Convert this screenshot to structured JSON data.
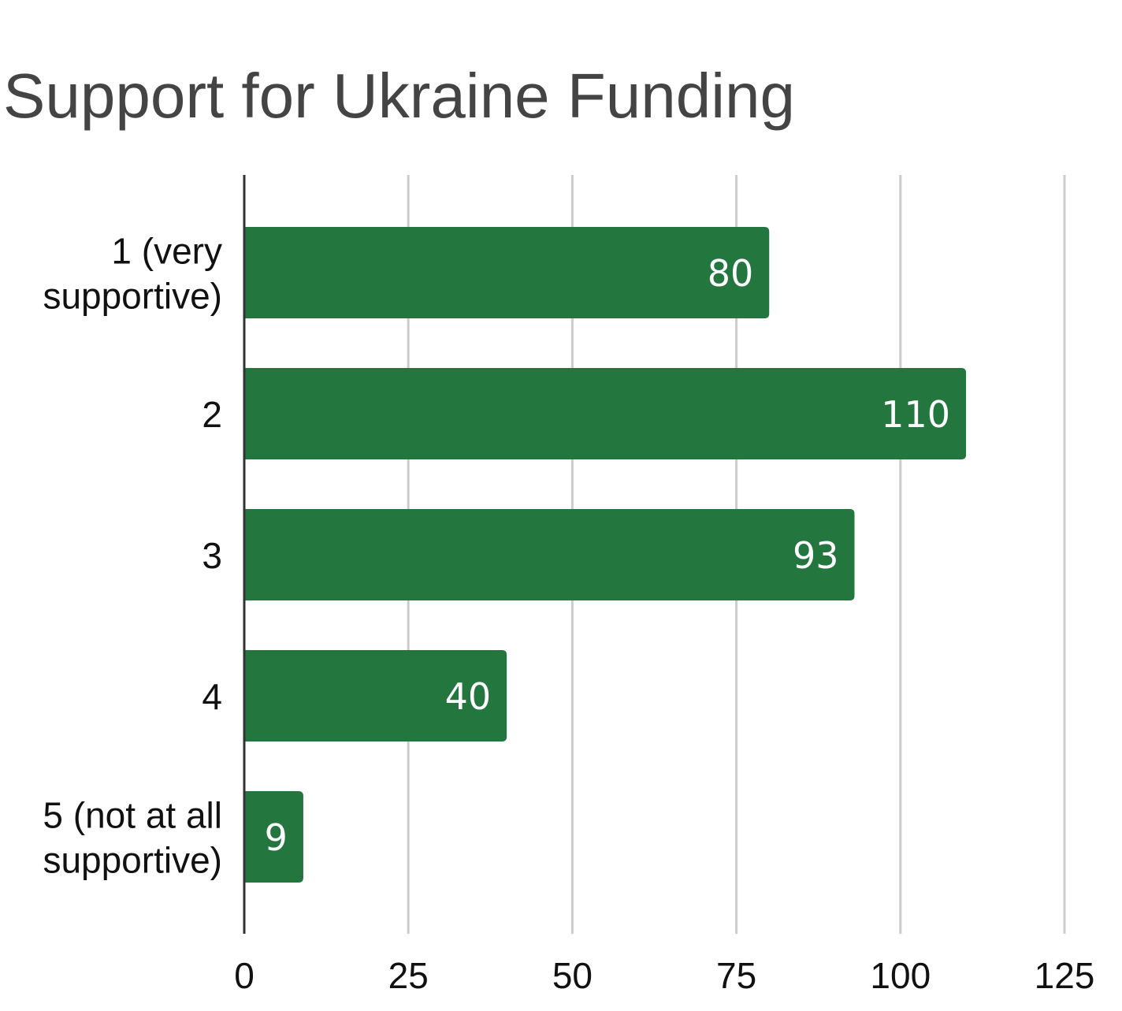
{
  "chart_data": {
    "type": "bar",
    "orientation": "horizontal",
    "title": "Support for Ukraine Funding",
    "categories": [
      [
        "1 (very",
        "supportive)"
      ],
      [
        "2"
      ],
      [
        "3"
      ],
      [
        "4"
      ],
      [
        "5 (not at all",
        "supportive)"
      ]
    ],
    "values": [
      80,
      110,
      93,
      40,
      9
    ],
    "xlim": [
      0,
      125
    ],
    "ticks": [
      0,
      25,
      50,
      75,
      100,
      125
    ],
    "grid": true,
    "legend": "none",
    "bar_color": "#24763f",
    "grid_color": "#cccccc",
    "axis_color": "#333333"
  }
}
